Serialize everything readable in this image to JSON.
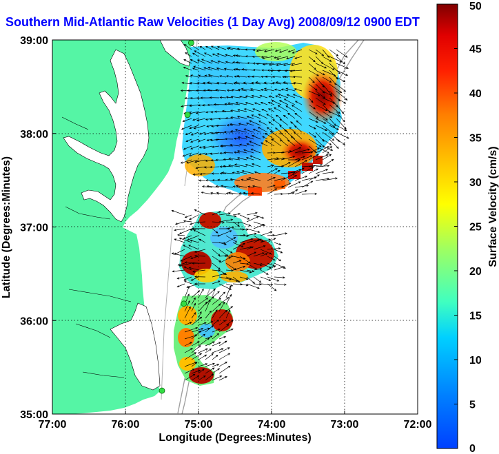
{
  "title": "Southern Mid-Atlantic Raw Velocities (1 Day Avg) 2008/09/12 0900 EDT",
  "axes": {
    "xlabel": "Longitude (Degrees:Minutes)",
    "ylabel": "Latitude (Degrees:Minutes)",
    "xticks": [
      "77:00",
      "76:00",
      "75:00",
      "74:00",
      "73:00",
      "72:00"
    ],
    "yticks": [
      "35:00",
      "36:00",
      "37:00",
      "38:00",
      "39:00"
    ],
    "xlim": [
      -77,
      -72
    ],
    "ylim": [
      35,
      39
    ],
    "grid": true
  },
  "colorbar": {
    "label": "Surface Velocity (cm/s)",
    "ticks": [
      "0",
      "5",
      "10",
      "15",
      "20",
      "25",
      "30",
      "35",
      "40",
      "45",
      "50"
    ],
    "range": [
      0,
      50
    ],
    "scheme": "jet"
  },
  "colors": {
    "land": "#55f5a5",
    "water": "#ffffff",
    "bathymetry": "#a0a0a0",
    "site_marker": "#33dd44",
    "arrow": "#000000",
    "title": "#0000ff"
  },
  "radar_sites": [
    {
      "lon": -75.1,
      "lat": 38.97
    },
    {
      "lon": -75.15,
      "lat": 38.2
    },
    {
      "lon": -75.2,
      "lat": 36.18
    },
    {
      "lon": -75.5,
      "lat": 35.25
    }
  ]
}
